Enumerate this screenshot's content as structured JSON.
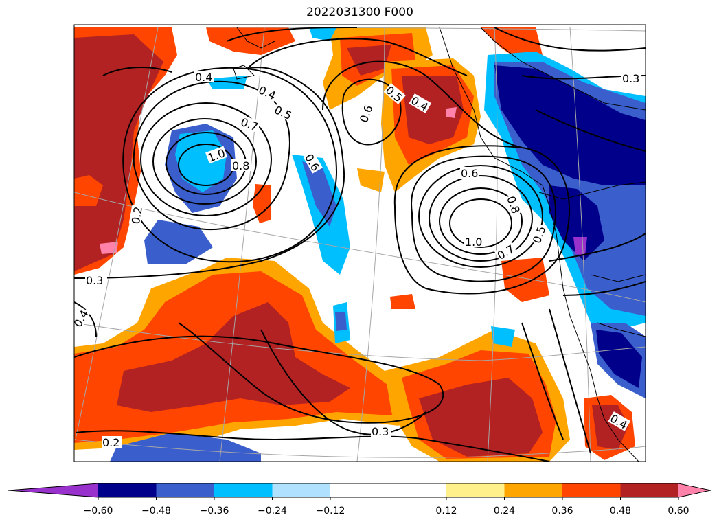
{
  "title": "2022031300 F000",
  "colorbar": {
    "tick_labels": [
      "−0.60",
      "−0.48",
      "−0.36",
      "−0.24",
      "−0.12",
      "0.12",
      "0.24",
      "0.36",
      "0.48",
      "0.60"
    ],
    "colors": [
      "#9932cc",
      "#00008b",
      "#3a5fcd",
      "#00bfff",
      "#b0e2ff",
      "#ffffff",
      "#ffffff",
      "#fff08c",
      "#ffa500",
      "#ff4500",
      "#b22222",
      "#ff82ab"
    ],
    "extend": "both"
  },
  "contour_labels": [
    {
      "text": "0.4"
    },
    {
      "text": "0.4"
    },
    {
      "text": "0.5"
    },
    {
      "text": "0.7"
    },
    {
      "text": "1.0"
    },
    {
      "text": "0.8"
    },
    {
      "text": "0.6"
    },
    {
      "text": "0.6"
    },
    {
      "text": "0.5"
    },
    {
      "text": "0.4"
    },
    {
      "text": "0.3"
    },
    {
      "text": "0.6"
    },
    {
      "text": "0.8"
    },
    {
      "text": "1.0"
    },
    {
      "text": "0.7"
    },
    {
      "text": "0.5"
    },
    {
      "text": "0.2"
    },
    {
      "text": "0.3"
    },
    {
      "text": "0.4"
    },
    {
      "text": "0.2"
    },
    {
      "text": "0.3"
    },
    {
      "text": "0.4"
    }
  ]
}
